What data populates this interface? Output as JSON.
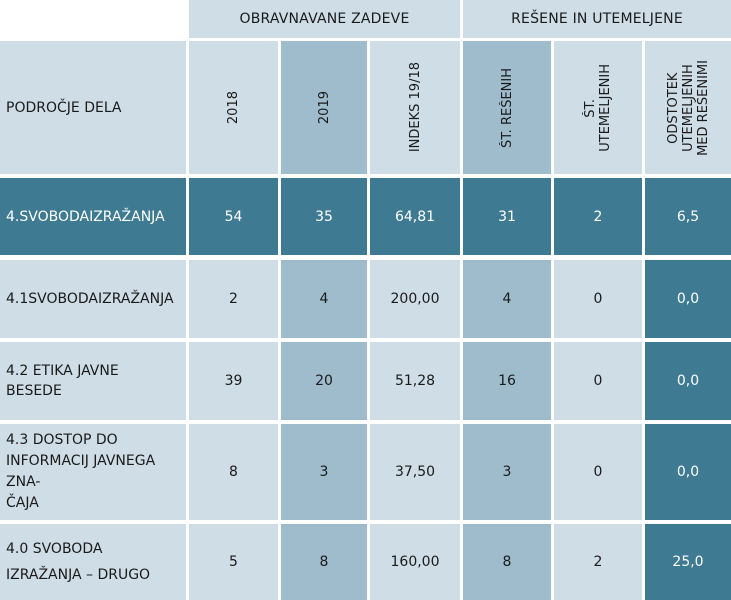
{
  "table": {
    "group_headers": {
      "handled": "OBRAVNAVANE ZADEVE",
      "resolved": "REŠENE IN UTEMELJENE"
    },
    "column_headers": {
      "area": "PODROČJE DELA",
      "y2018": "2018",
      "y2019": "2019",
      "index": "INDEKS 19/18",
      "resolved_count": "ŠT. REŠENIH",
      "justified_count": "ŠT.\nUTEMELJENIH",
      "percent": "ODSTOTEK\nUTEMELJENIH\nMED REŠENIMI"
    },
    "rows": [
      {
        "area": "4.SVOBODAIZRAŽANJA",
        "y2018": "54",
        "y2019": "35",
        "index": "64,81",
        "resolved": "31",
        "justified": "2",
        "percent": "6,5"
      },
      {
        "area": "4.1SVOBODAIZRAŽANJA",
        "y2018": "2",
        "y2019": "4",
        "index": "200,00",
        "resolved": "4",
        "justified": "0",
        "percent": "0,0"
      },
      {
        "area": "4.2 ETIKA JAVNE\nBESEDE",
        "y2018": "39",
        "y2019": "20",
        "index": "51,28",
        "resolved": "16",
        "justified": "0",
        "percent": "0,0"
      },
      {
        "area": "4.3 DOSTOP DO\nINFORMACIJ JAVNEGA\nZNA-\nČAJA",
        "y2018": "8",
        "y2019": "3",
        "index": "37,50",
        "resolved": "3",
        "justified": "0",
        "percent": "0,0"
      },
      {
        "area": "4.0 SVOBODA\nIZRAŽANJA – DRUGO",
        "y2018": "5",
        "y2019": "8",
        "index": "160,00",
        "resolved": "8",
        "justified": "2",
        "percent": "25,0"
      }
    ]
  }
}
